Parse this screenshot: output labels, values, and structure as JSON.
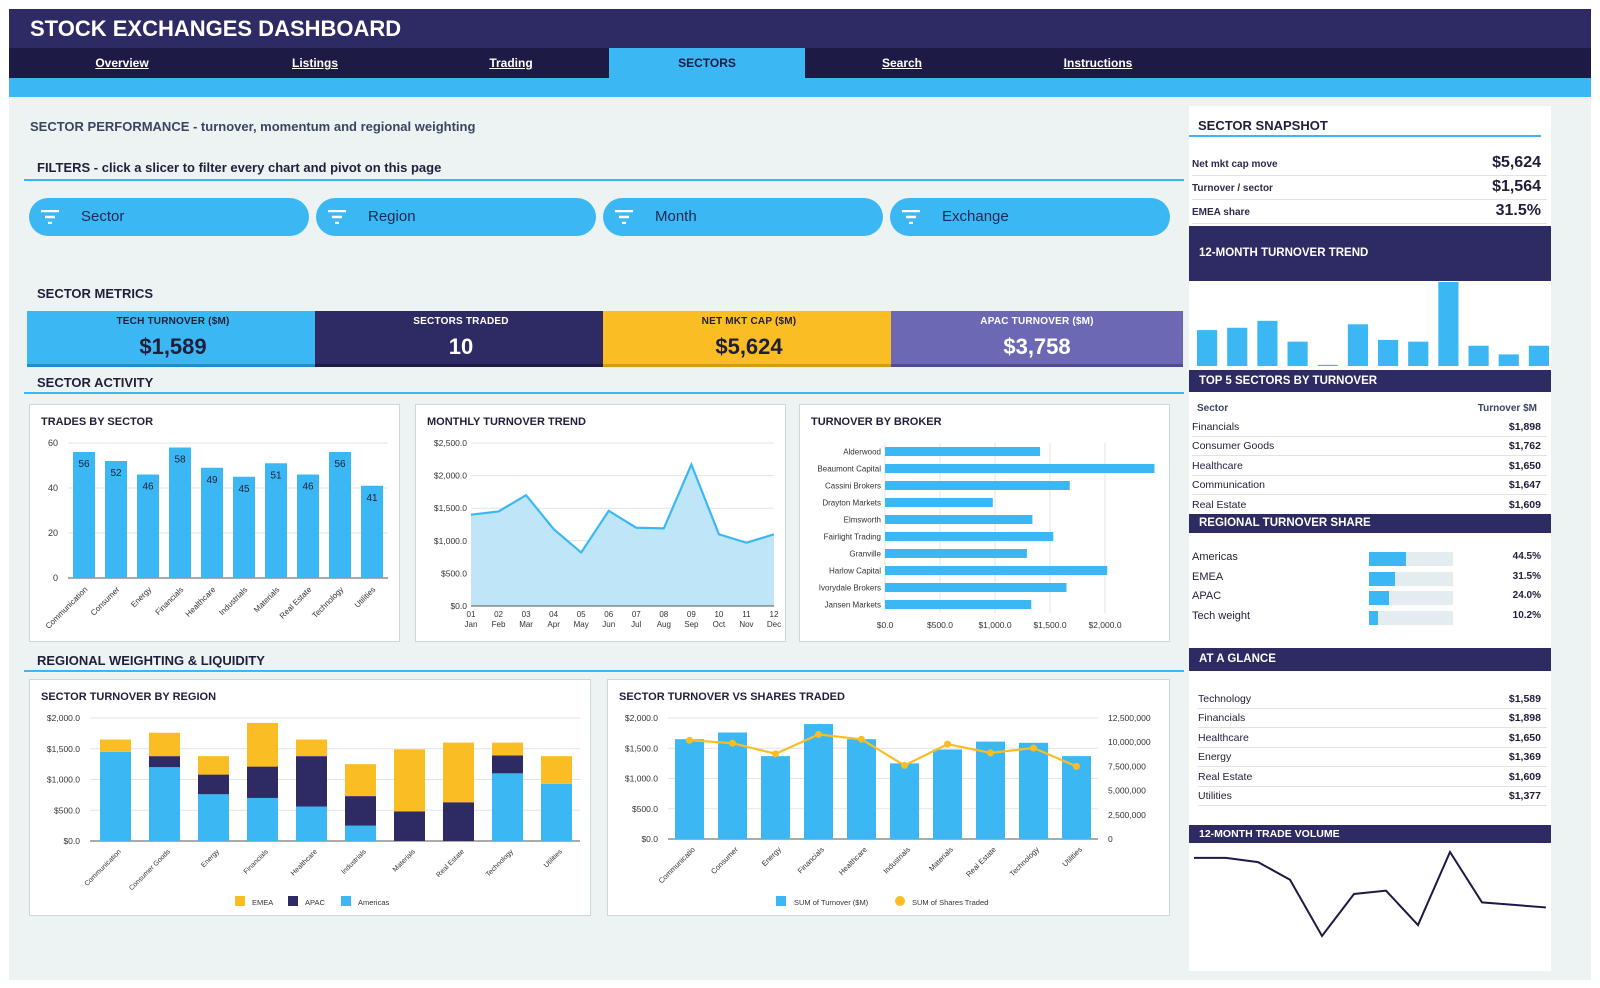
{
  "app": {
    "title": "STOCK EXCHANGES DASHBOARD"
  },
  "nav": {
    "tabs": [
      "Overview",
      "Listings",
      "Trading",
      "SECTORS",
      "Search",
      "Instructions"
    ],
    "active": "SECTORS"
  },
  "page": {
    "heading": "SECTOR PERFORMANCE  -  turnover, momentum and regional weighting",
    "filters_title": "FILTERS  -  click a slicer to filter every chart and pivot on this page",
    "slicers": [
      "Sector",
      "Region",
      "Month",
      "Exchange"
    ],
    "metrics_title": "SECTOR METRICS",
    "activity_title": "SECTOR ACTIVITY",
    "regional_title": "REGIONAL WEIGHTING & LIQUIDITY"
  },
  "kpis": [
    {
      "label": "TECH TURNOVER ($M)",
      "value": "$1,589",
      "color": "#3bb8f3",
      "text": "#1f1f3a"
    },
    {
      "label": "SECTORS TRADED",
      "value": "10",
      "color": "#2e2a63",
      "text": "#ffffff"
    },
    {
      "label": "NET MKT CAP ($M)",
      "value": "$5,624",
      "color": "#fbbd24",
      "text": "#1f1f3a"
    },
    {
      "label": "APAC TURNOVER ($M)",
      "value": "$3,758",
      "color": "#6c68b3",
      "text": "#ffffff"
    }
  ],
  "side": {
    "snapshot_title": "SECTOR SNAPSHOT",
    "snapshot": [
      {
        "k": "Net mkt cap move",
        "v": "$5,624"
      },
      {
        "k": "Turnover / sector",
        "v": "$1,564"
      },
      {
        "k": "EMEA share",
        "v": "31.5%"
      }
    ],
    "trend_title": "12-MONTH TURNOVER TREND",
    "top5_title": "TOP 5 SECTORS BY TURNOVER",
    "top5_headers": [
      "Sector",
      "Turnover $M"
    ],
    "top5": [
      {
        "k": "Financials",
        "v": "$1,898"
      },
      {
        "k": "Consumer Goods",
        "v": "$1,762"
      },
      {
        "k": "Healthcare",
        "v": "$1,650"
      },
      {
        "k": "Communication",
        "v": "$1,647"
      },
      {
        "k": "Real Estate",
        "v": "$1,609"
      }
    ],
    "regional_title": "REGIONAL TURNOVER SHARE",
    "regional": [
      {
        "k": "Americas",
        "v": "44.5%",
        "frac": 0.445
      },
      {
        "k": "EMEA",
        "v": "31.5%",
        "frac": 0.315
      },
      {
        "k": "APAC",
        "v": "24.0%",
        "frac": 0.24
      },
      {
        "k": "Tech weight",
        "v": "10.2%",
        "frac": 0.102
      }
    ],
    "glance_title": "AT A GLANCE",
    "glance": [
      {
        "k": "Technology",
        "v": "$1,589"
      },
      {
        "k": "Financials",
        "v": "$1,898"
      },
      {
        "k": "Healthcare",
        "v": "$1,650"
      },
      {
        "k": "Energy",
        "v": "$1,369"
      },
      {
        "k": "Real Estate",
        "v": "$1,609"
      },
      {
        "k": "Utilities",
        "v": "$1,377"
      }
    ],
    "volume_title": "12-MONTH TRADE VOLUME"
  },
  "colors": {
    "blue": "#3bb8f3",
    "navy": "#2e2a63",
    "dark": "#1d1a45",
    "gold": "#fbbd24",
    "lightblue": "#bfe6f8"
  },
  "chart_data": [
    {
      "id": "trades",
      "type": "bar",
      "title": "TRADES BY SECTOR",
      "categories": [
        "Communication",
        "Consumer",
        "Energy",
        "Financials",
        "Healthcare",
        "Industrials",
        "Materials",
        "Real Estate",
        "Technology",
        "Utilities"
      ],
      "values": [
        56,
        52,
        46,
        58,
        49,
        45,
        51,
        46,
        56,
        41
      ],
      "ylim": [
        0,
        60
      ],
      "yticks": [
        0,
        20,
        40,
        60
      ],
      "data_labels": true
    },
    {
      "id": "monthly",
      "type": "area",
      "title": "MONTHLY TURNOVER TREND",
      "x": [
        "01 Jan",
        "02 Feb",
        "03 Mar",
        "04 Apr",
        "05 May",
        "06 Jun",
        "07 Jul",
        "08 Aug",
        "09 Sep",
        "10 Oct",
        "11 Nov",
        "12 Dec"
      ],
      "values": [
        1400,
        1450,
        1700,
        1180,
        820,
        1460,
        1200,
        1190,
        2170,
        1100,
        970,
        1100
      ],
      "ylim": [
        0,
        2500
      ],
      "yticks": [
        "$0.0",
        "$500.0",
        "$1,000.0",
        "$1,500.0",
        "$2,000.0",
        "$2,500.0"
      ]
    },
    {
      "id": "broker",
      "type": "bar",
      "orientation": "horizontal",
      "title": "TURNOVER BY BROKER",
      "categories": [
        "Alderwood",
        "Beaumont Capital",
        "Cassini Brokers",
        "Drayton Markets",
        "Elmsworth",
        "Fairlight Trading",
        "Granville",
        "Harlow Capital",
        "Ivorydale Brokers",
        "Jansen Markets"
      ],
      "values": [
        1410,
        2450,
        1680,
        980,
        1340,
        1530,
        1290,
        2020,
        1650,
        1330
      ],
      "xlim": [
        0,
        2500
      ],
      "xticks": [
        "$0.0",
        "$500.0",
        "$1,000.0",
        "$1,500.0",
        "$2,000.0"
      ]
    },
    {
      "id": "region",
      "type": "bar",
      "stacked": true,
      "title": "SECTOR TURNOVER BY REGION",
      "categories": [
        "Communication",
        "Consumer Goods",
        "Energy",
        "Financials",
        "Healthcare",
        "Industrials",
        "Materials",
        "Real Estate",
        "Technology",
        "Utilities"
      ],
      "series": [
        {
          "name": "Americas",
          "color": "#3bb8f3",
          "values": [
            1450,
            1200,
            760,
            700,
            560,
            250,
            0,
            0,
            1100,
            930
          ]
        },
        {
          "name": "APAC",
          "color": "#2e2a63",
          "values": [
            0,
            180,
            320,
            510,
            820,
            480,
            480,
            630,
            290,
            0
          ]
        },
        {
          "name": "EMEA",
          "color": "#fbbd24",
          "values": [
            200,
            380,
            300,
            710,
            270,
            520,
            1010,
            970,
            210,
            450
          ]
        }
      ],
      "ylim": [
        0,
        2000
      ],
      "yticks": [
        "$0.0",
        "$500.0",
        "$1,000.0",
        "$1,500.0",
        "$2,000.0"
      ],
      "legend": [
        "EMEA",
        "APAC",
        "Americas"
      ]
    },
    {
      "id": "shares",
      "type": "bar",
      "title": "SECTOR TURNOVER VS SHARES TRADED",
      "categories": [
        "Communicatio",
        "Consumer",
        "Energy",
        "Financials",
        "Healthcare",
        "Industrials",
        "Materials",
        "Real Estate",
        "Technology",
        "Utilities"
      ],
      "series": [
        {
          "name": "SUM of Turnover ($M)",
          "type": "bar",
          "color": "#3bb8f3",
          "values": [
            1650,
            1760,
            1370,
            1900,
            1650,
            1250,
            1480,
            1610,
            1590,
            1370
          ]
        },
        {
          "name": "SUM of Shares Traded",
          "type": "line",
          "color": "#fbbd24",
          "values": [
            10200000,
            9900000,
            8800000,
            10800000,
            10300000,
            7600000,
            9800000,
            8900000,
            9400000,
            7500000
          ]
        }
      ],
      "ylim": [
        0,
        2000
      ],
      "y2lim": [
        0,
        12500000
      ],
      "yticks": [
        "$0.0",
        "$500.0",
        "$1,000.0",
        "$1,500.0",
        "$2,000.0"
      ],
      "y2ticks": [
        "0",
        "2,500,000",
        "5,000,000",
        "7,500,000",
        "10,000,000",
        "12,500,000"
      ]
    },
    {
      "id": "trend12",
      "type": "bar",
      "title": "12-MONTH TURNOVER TREND",
      "values": [
        62,
        66,
        78,
        42,
        2,
        72,
        45,
        42,
        145,
        35,
        20,
        35
      ],
      "ylim": [
        0,
        145
      ]
    },
    {
      "id": "volume12",
      "type": "line",
      "title": "12-MONTH TRADE VOLUME",
      "values": [
        93,
        93,
        88,
        67,
        0,
        50,
        54,
        13,
        100,
        40,
        37,
        34
      ],
      "ylim": [
        0,
        100
      ]
    }
  ]
}
